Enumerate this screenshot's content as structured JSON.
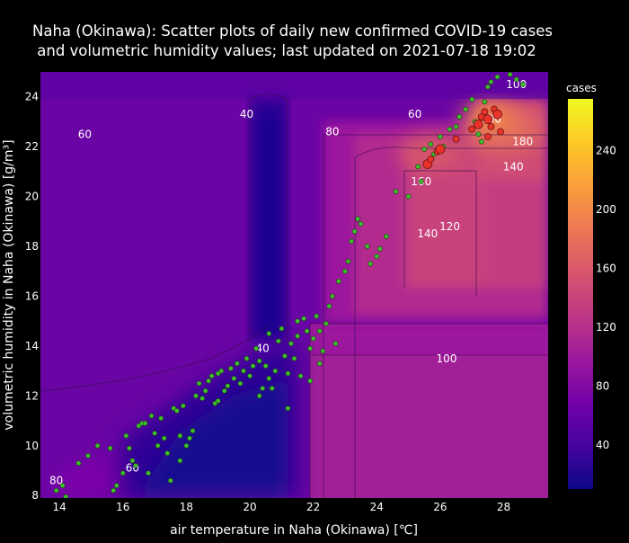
{
  "chart_data": {
    "type": "scatter",
    "title": "Naha (Okinawa): Scatter plots of daily new confirmed COVID-19 cases",
    "subtitle": " and volumetric humidity values; last updated on 2021-07-18 19:02",
    "xlabel": "air temperature in Naha (Okinawa) [℃]",
    "ylabel": "volumetric humidity in Naha (Okinawa) [g/m³]",
    "xlim": [
      13.4,
      29.4
    ],
    "ylim": [
      7.9,
      25.0
    ],
    "xticks": [
      14,
      16,
      18,
      20,
      22,
      24,
      26,
      28
    ],
    "yticks": [
      8,
      10,
      12,
      14,
      16,
      18,
      20,
      22,
      24
    ],
    "colorbar": {
      "title": "cases",
      "range": [
        10,
        275
      ],
      "ticks": [
        40,
        80,
        120,
        160,
        200,
        240
      ],
      "colors": [
        "#0d0887",
        "#46039f",
        "#7201a8",
        "#9c179e",
        "#bd3786",
        "#d8576b",
        "#ed7953",
        "#fb9f3a",
        "#fdca26",
        "#f0f921"
      ]
    },
    "contour_labels": [
      {
        "text": "40",
        "x": 19.9,
        "y": 23.3
      },
      {
        "text": "40",
        "x": 20.4,
        "y": 13.9
      },
      {
        "text": "60",
        "x": 14.8,
        "y": 22.5
      },
      {
        "text": "60",
        "x": 25.2,
        "y": 23.3
      },
      {
        "text": "60",
        "x": 16.3,
        "y": 9.1
      },
      {
        "text": "80",
        "x": 22.6,
        "y": 22.6
      },
      {
        "text": "80",
        "x": 13.9,
        "y": 8.6
      },
      {
        "text": "100",
        "x": 28.4,
        "y": 24.5
      },
      {
        "text": "100",
        "x": 27.6,
        "y": 23.1
      },
      {
        "text": "100",
        "x": 26.2,
        "y": 13.5
      },
      {
        "text": "180",
        "x": 28.6,
        "y": 22.2
      },
      {
        "text": "140",
        "x": 28.3,
        "y": 21.2
      },
      {
        "text": "140",
        "x": 25.6,
        "y": 18.5
      },
      {
        "text": "160",
        "x": 25.4,
        "y": 20.6
      },
      {
        "text": "120",
        "x": 26.3,
        "y": 18.8
      }
    ],
    "points_low": [
      [
        13.9,
        8.2
      ],
      [
        14.1,
        8.4
      ],
      [
        14.2,
        7.95
      ],
      [
        14.6,
        9.3
      ],
      [
        14.9,
        9.6
      ],
      [
        15.2,
        10.0
      ],
      [
        15.7,
        8.2
      ],
      [
        15.8,
        8.4
      ],
      [
        16.1,
        10.4
      ],
      [
        16.2,
        9.9
      ],
      [
        16.3,
        9.4
      ],
      [
        16.4,
        9.2
      ],
      [
        16.5,
        10.8
      ],
      [
        16.6,
        10.9
      ],
      [
        16.7,
        10.9
      ],
      [
        16.8,
        8.9
      ],
      [
        16.9,
        11.2
      ],
      [
        17.0,
        10.5
      ],
      [
        17.1,
        10.0
      ],
      [
        17.2,
        11.1
      ],
      [
        17.3,
        10.3
      ],
      [
        17.4,
        9.7
      ],
      [
        17.6,
        11.5
      ],
      [
        17.7,
        11.4
      ],
      [
        17.8,
        10.4
      ],
      [
        17.9,
        11.6
      ],
      [
        18.0,
        10.0
      ],
      [
        18.1,
        10.3
      ],
      [
        18.2,
        10.6
      ],
      [
        18.3,
        12.0
      ],
      [
        18.4,
        12.5
      ],
      [
        18.5,
        11.9
      ],
      [
        18.6,
        12.2
      ],
      [
        18.7,
        12.6
      ],
      [
        18.8,
        12.8
      ],
      [
        18.9,
        11.7
      ],
      [
        19.0,
        12.9
      ],
      [
        19.1,
        13.0
      ],
      [
        19.2,
        12.2
      ],
      [
        19.3,
        12.4
      ],
      [
        19.4,
        13.1
      ],
      [
        19.5,
        12.7
      ],
      [
        19.6,
        13.3
      ],
      [
        19.7,
        12.5
      ],
      [
        19.8,
        13.0
      ],
      [
        19.9,
        13.5
      ],
      [
        20.0,
        12.8
      ],
      [
        20.1,
        13.2
      ],
      [
        20.2,
        13.9
      ],
      [
        20.3,
        13.4
      ],
      [
        20.4,
        12.3
      ],
      [
        20.5,
        13.2
      ],
      [
        20.6,
        12.7
      ],
      [
        20.7,
        12.3
      ],
      [
        20.8,
        13.0
      ],
      [
        20.9,
        14.2
      ],
      [
        21.0,
        14.7
      ],
      [
        21.1,
        13.6
      ],
      [
        21.2,
        12.9
      ],
      [
        21.3,
        14.1
      ],
      [
        21.4,
        13.5
      ],
      [
        21.5,
        14.4
      ],
      [
        21.6,
        12.8
      ],
      [
        21.7,
        15.1
      ],
      [
        21.8,
        14.6
      ],
      [
        21.9,
        13.9
      ],
      [
        22.0,
        14.3
      ],
      [
        22.1,
        15.2
      ],
      [
        22.2,
        14.6
      ],
      [
        22.3,
        13.8
      ],
      [
        22.5,
        15.6
      ],
      [
        22.6,
        16.0
      ],
      [
        22.8,
        16.6
      ],
      [
        23.0,
        17.0
      ],
      [
        23.1,
        17.4
      ],
      [
        23.2,
        18.2
      ],
      [
        23.3,
        18.6
      ],
      [
        23.4,
        19.1
      ],
      [
        23.5,
        18.9
      ],
      [
        23.7,
        18.0
      ],
      [
        23.8,
        17.3
      ],
      [
        24.0,
        17.6
      ],
      [
        24.1,
        17.9
      ],
      [
        24.3,
        18.4
      ],
      [
        24.6,
        20.2
      ],
      [
        25.0,
        20.0
      ],
      [
        25.3,
        21.2
      ],
      [
        25.4,
        20.6
      ],
      [
        25.5,
        21.9
      ],
      [
        25.7,
        22.1
      ],
      [
        25.8,
        21.7
      ],
      [
        26.0,
        22.4
      ],
      [
        26.1,
        22.0
      ],
      [
        26.3,
        22.7
      ],
      [
        26.5,
        22.8
      ],
      [
        26.6,
        23.2
      ],
      [
        26.8,
        23.5
      ],
      [
        27.0,
        23.9
      ],
      [
        27.1,
        23.0
      ],
      [
        27.2,
        22.5
      ],
      [
        27.3,
        22.2
      ],
      [
        27.4,
        23.8
      ],
      [
        27.5,
        24.4
      ],
      [
        27.6,
        24.6
      ],
      [
        27.8,
        24.8
      ],
      [
        28.2,
        24.9
      ],
      [
        28.4,
        24.7
      ],
      [
        28.6,
        24.5
      ],
      [
        22.2,
        13.3
      ],
      [
        21.9,
        12.6
      ],
      [
        21.5,
        15.0
      ],
      [
        22.4,
        14.9
      ],
      [
        20.6,
        14.5
      ],
      [
        19.0,
        11.8
      ],
      [
        17.8,
        9.4
      ],
      [
        17.5,
        8.6
      ],
      [
        15.6,
        9.9
      ],
      [
        16.0,
        8.9
      ],
      [
        21.2,
        11.5
      ],
      [
        20.3,
        12.0
      ],
      [
        22.7,
        14.1
      ]
    ],
    "points_high": [
      [
        25.6,
        21.3
      ],
      [
        25.7,
        21.5
      ],
      [
        25.9,
        21.8
      ],
      [
        26.0,
        21.9
      ],
      [
        26.5,
        22.3
      ],
      [
        27.0,
        22.7
      ],
      [
        27.2,
        22.9
      ],
      [
        27.3,
        23.2
      ],
      [
        27.4,
        23.4
      ],
      [
        27.5,
        23.1
      ],
      [
        27.6,
        22.8
      ],
      [
        27.7,
        23.5
      ],
      [
        27.8,
        23.3
      ],
      [
        27.9,
        22.6
      ],
      [
        27.5,
        22.4
      ]
    ]
  }
}
